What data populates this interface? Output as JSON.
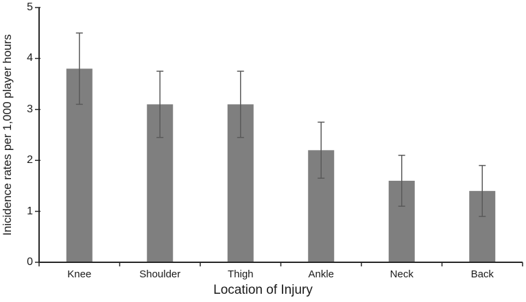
{
  "chart_data": {
    "type": "bar",
    "title": "",
    "categories": [
      "Knee",
      "Shoulder",
      "Thigh",
      "Ankle",
      "Neck",
      "Back"
    ],
    "values": [
      3.8,
      3.1,
      3.1,
      2.2,
      1.6,
      1.4
    ],
    "error_bars": [
      0.7,
      0.65,
      0.65,
      0.55,
      0.5,
      0.5
    ],
    "xlabel": "Location of Injury",
    "ylabel": "Inicidence rates per 1,000 player hours",
    "ylim": [
      0,
      5
    ],
    "yticks": [
      0,
      1,
      2,
      3,
      4,
      5
    ],
    "grid": false,
    "legend": false,
    "bar_color": "#7f7f7f",
    "error_color": "#595959",
    "axis_color": "#262626",
    "text_color": "#1a1a1a",
    "background": "#ffffff"
  }
}
